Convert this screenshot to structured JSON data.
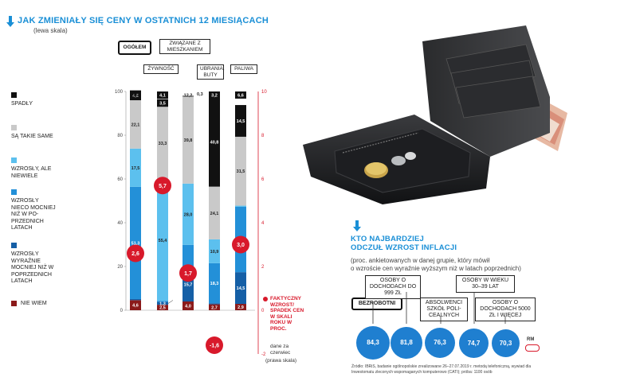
{
  "left": {
    "title": "JAK ZMIENIAŁY SIĘ CENY W OSTATNICH 12 MIESIĄCACH",
    "subtitle": "(lewa skala)",
    "legend": [
      {
        "label": "SPADŁY",
        "color": "#111111"
      },
      {
        "label": "SĄ TAKIE SAME",
        "color": "#c9c9c9"
      },
      {
        "label": "WZROSŁY, ALE NIEWIELE",
        "color": "#5cc0ee"
      },
      {
        "label": "WZROSŁY NIECO MOCNIEJ NIŻ W PO-PRZEDNICH LATACH",
        "color": "#2390d8"
      },
      {
        "label": "WZROSŁY WYRAŹNIE MOCNIEJ NIŻ W POPRZEDNICH LATACH",
        "color": "#155fa6"
      },
      {
        "label": "NIE WIEM",
        "color": "#8b1a1a"
      }
    ],
    "right_legend": {
      "title": "FAKTYCZNY WZROST/ SPADEK CEN W SKALI ROKU W PROC.",
      "note": "dane za czerwiec",
      "scale": "(prawa skala)"
    },
    "left_ticks": [
      "100",
      "80",
      "60",
      "40",
      "20",
      "0"
    ],
    "right_ticks": [
      "10",
      "8",
      "6",
      "4",
      "2",
      "0",
      "-2"
    ]
  },
  "chart_data": {
    "type": "bar",
    "stacked": true,
    "categories": [
      "OGÓŁEM",
      "ŻYWNOŚĆ",
      "ZWIĄZANE Z MIESZKANIEM",
      "UBRANIA, BUTY",
      "PALIWA"
    ],
    "ylim": [
      0,
      100
    ],
    "y2lim": [
      -2,
      10
    ],
    "series": [
      {
        "name": "NIE WIEM",
        "color": "#8b1a1a",
        "values": [
          4.6,
          2.5,
          4.0,
          2.7,
          2.9
        ],
        "labels": [
          "4,6",
          "2,5",
          "4,0",
          "2,7",
          "2,9"
        ]
      },
      {
        "name": "WZROSŁY WYRAŹNIE MOCNIEJ NIŻ W POPRZEDNICH LATACH",
        "color": "#155fa6",
        "values": [
          0.5,
          1.3,
          15.7,
          0.5,
          14.5
        ],
        "labels": [
          "",
          "1,3",
          "15,7",
          "",
          "14,5"
        ]
      },
      {
        "name": "WZROSŁY NIECO MOCNIEJ NIŻ W PO-PRZEDNICH LATACH",
        "color": "#2390d8",
        "values": [
          51.3,
          0.5,
          10.2,
          18.3,
          29.9
        ],
        "labels": [
          "51,3",
          "",
          "",
          "18,3",
          "29,9"
        ]
      },
      {
        "name": "WZROSŁY, ALE NIEWIELE",
        "color": "#5cc0ee",
        "values": [
          17.5,
          55.4,
          28.0,
          10.9,
          0.5
        ],
        "labels": [
          "17,5",
          "55,4",
          "28,0",
          "10,9",
          ""
        ]
      },
      {
        "name": "SĄ TAKIE SAME",
        "color": "#c9c9c9",
        "values": [
          22.1,
          33.3,
          39.8,
          24.1,
          31.5
        ],
        "labels": [
          "22,1",
          "33,3",
          "39,8",
          "24,1",
          "31,5"
        ]
      },
      {
        "name": "SPADŁY",
        "color": "#111111",
        "values": [
          4.5,
          3.5,
          0.3,
          40.8,
          14.5
        ],
        "labels": [
          "4,5",
          "3,5",
          "",
          "40,8",
          "14,5"
        ]
      }
    ],
    "top_labels": [
      {
        "cat": 0,
        "text": "4,5",
        "dark": false
      },
      {
        "cat": 1,
        "text": "4,1",
        "dark": true
      },
      {
        "cat": 2,
        "text": "12,2",
        "dark": false
      },
      {
        "cat": 3,
        "text": "3,2",
        "dark": true
      },
      {
        "cat": 4,
        "text": "6,6",
        "dark": true
      }
    ],
    "extra_labels": [
      "0,3"
    ],
    "actual_change": [
      {
        "cat": 0,
        "value": 2.6,
        "label": "2,6"
      },
      {
        "cat": 1,
        "value": 5.7,
        "label": "5,7"
      },
      {
        "cat": 2,
        "value": 1.7,
        "label": "1,7"
      },
      {
        "cat": 3,
        "value": -1.6,
        "label": "-1,6"
      },
      {
        "cat": 4,
        "value": 3.0,
        "label": "3,0"
      }
    ]
  },
  "right": {
    "title_line1": "KTO NAJBARDZIEJ",
    "title_line2": "ODCZUŁ WZROST INFLACJI",
    "subtitle_line1": "(proc. ankietowanych w danej grupie, który mówił",
    "subtitle_line2": "o wzroście cen wyraźnie wyższym niż w latach poprzednich)",
    "groups": [
      {
        "label": "BEZROBOTNI",
        "value": "84,3",
        "pct": 84.3
      },
      {
        "label": "OSOBY O DOCHODACH DO 999 ZŁ",
        "value": "81,8",
        "pct": 81.8
      },
      {
        "label": "ABSOLWENCI SZKÓŁ POLI-CEALNYCH",
        "value": "76,3",
        "pct": 76.3
      },
      {
        "label": "OSOBY W WIEKU 30–39 LAT",
        "value": "74,7",
        "pct": 74.7
      },
      {
        "label": "OSOBY O DOCHODACH 5000 ZŁ I WIĘCEJ",
        "value": "70,3",
        "pct": 70.3
      }
    ],
    "source": "Źródło: IBRiS, badanie ogólnopolskie zrealizowane 26–27.07.2019 r. metodą telefoniczną, wywiad dla Inwestomatu zleconych wspomaganych komputerowo (CATI); próba: 1100 osób",
    "logo": "RM"
  }
}
